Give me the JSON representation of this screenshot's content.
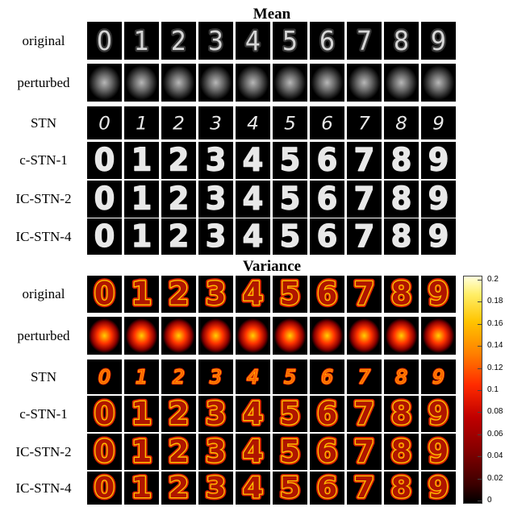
{
  "mean": {
    "title": "Mean",
    "digits": [
      "0",
      "1",
      "2",
      "3",
      "4",
      "5",
      "6",
      "7",
      "8",
      "9"
    ],
    "rows": [
      {
        "label": "original",
        "style": "blur"
      },
      {
        "label": "perturbed",
        "style": "blob"
      },
      {
        "label": "STN",
        "style": "thin"
      },
      {
        "label": "c-STN-1",
        "style": "bold"
      },
      {
        "label": "IC-STN-2",
        "style": "bold"
      },
      {
        "label": "IC-STN-4",
        "style": "bold"
      }
    ],
    "colors": {
      "background": "#000000",
      "stroke": "#e8e8e8"
    }
  },
  "variance": {
    "title": "Variance",
    "digits": [
      "0",
      "1",
      "2",
      "3",
      "4",
      "5",
      "6",
      "7",
      "8",
      "9"
    ],
    "rows": [
      {
        "label": "original",
        "style": "bold"
      },
      {
        "label": "perturbed",
        "style": "blob"
      },
      {
        "label": "STN",
        "style": "thin"
      },
      {
        "label": "c-STN-1",
        "style": "bold"
      },
      {
        "label": "IC-STN-2",
        "style": "bold"
      },
      {
        "label": "IC-STN-4",
        "style": "bold"
      }
    ],
    "colorbar": {
      "ticks": [
        "0.2",
        "0.18",
        "0.16",
        "0.14",
        "0.12",
        "0.1",
        "0.08",
        "0.06",
        "0.04",
        "0.02",
        "0"
      ],
      "range": [
        0,
        0.2
      ]
    },
    "colors": {
      "background": "#000000",
      "outer": "#ff2a00",
      "inner": "#ffc400",
      "core": "#ffee66"
    }
  }
}
